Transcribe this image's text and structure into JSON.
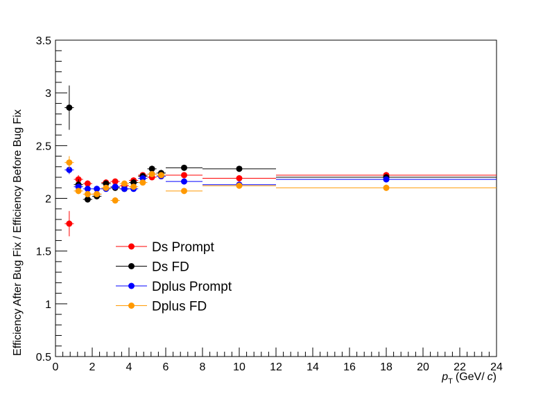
{
  "chart_data": {
    "type": "scatter",
    "title": "",
    "xlabel": "p_T (GeV/ c)",
    "xlabel_parts": {
      "p": "p",
      "T": "T",
      "unit": "(GeV/",
      "c": "c",
      "close": ")"
    },
    "ylabel": "Efficiency After Bug Fix / Efficiency Before Bug Fix",
    "xlim": [
      0,
      24
    ],
    "ylim": [
      0.5,
      3.5
    ],
    "x_major_ticks": [
      0,
      2,
      4,
      6,
      8,
      10,
      12,
      14,
      16,
      18,
      20,
      22,
      24
    ],
    "y_major_ticks": [
      0.5,
      1,
      1.5,
      2,
      2.5,
      3,
      3.5
    ],
    "x_tick_labels": [
      "0",
      "2",
      "4",
      "6",
      "8",
      "10",
      "12",
      "14",
      "16",
      "18",
      "20",
      "22",
      "24"
    ],
    "y_tick_labels": [
      "0.5",
      "1",
      "1.5",
      "2",
      "2.5",
      "3",
      "3.5"
    ],
    "grid": false,
    "legend_position": "lower-left",
    "x_bins": [
      [
        0.5,
        1.0
      ],
      [
        1.0,
        1.5
      ],
      [
        1.5,
        2.0
      ],
      [
        2.0,
        2.5
      ],
      [
        2.5,
        3.0
      ],
      [
        3.0,
        3.5
      ],
      [
        3.5,
        4.0
      ],
      [
        4.0,
        4.5
      ],
      [
        4.5,
        5.0
      ],
      [
        5.0,
        5.5
      ],
      [
        5.5,
        6.0
      ],
      [
        6.0,
        8.0
      ],
      [
        8.0,
        12.0
      ],
      [
        12.0,
        24.0
      ]
    ],
    "x": [
      0.75,
      1.25,
      1.75,
      2.25,
      2.75,
      3.25,
      3.75,
      4.25,
      4.75,
      5.25,
      5.75,
      7.0,
      10.0,
      18.0
    ],
    "series": [
      {
        "name": "Ds Prompt",
        "color": "#ff0000",
        "y": [
          1.76,
          2.18,
          2.14,
          2.04,
          2.15,
          2.16,
          2.12,
          2.17,
          2.22,
          2.2,
          2.21,
          2.22,
          2.19,
          2.22
        ],
        "yerr": [
          0.12,
          0.04,
          0.03,
          0.03,
          0.03,
          0.02,
          0.02,
          0.02,
          0.02,
          0.02,
          0.02,
          0.02,
          0.02,
          0.03
        ]
      },
      {
        "name": "Ds FD",
        "color": "#000000",
        "y": [
          2.86,
          2.13,
          1.99,
          2.02,
          2.14,
          2.1,
          2.09,
          2.15,
          2.21,
          2.28,
          2.24,
          2.29,
          2.28,
          2.2
        ],
        "yerr": [
          0.21,
          0.05,
          0.03,
          0.03,
          0.03,
          0.03,
          0.02,
          0.03,
          0.03,
          0.03,
          0.03,
          0.02,
          0.02,
          0.03
        ]
      },
      {
        "name": "Dplus Prompt",
        "color": "#0000ff",
        "y": [
          2.27,
          2.11,
          2.09,
          2.09,
          2.09,
          2.11,
          2.09,
          2.09,
          2.19,
          2.23,
          2.21,
          2.16,
          2.13,
          2.18
        ],
        "yerr": [
          0.04,
          0.02,
          0.02,
          0.02,
          0.02,
          0.02,
          0.02,
          0.02,
          0.02,
          0.02,
          0.02,
          0.01,
          0.01,
          0.02
        ]
      },
      {
        "name": "Dplus FD",
        "color": "#ff9900",
        "y": [
          2.34,
          2.07,
          2.04,
          2.04,
          2.1,
          1.98,
          2.14,
          2.11,
          2.15,
          2.23,
          2.22,
          2.07,
          2.12,
          2.1
        ],
        "yerr": [
          0.06,
          0.03,
          0.03,
          0.02,
          0.02,
          0.02,
          0.02,
          0.02,
          0.02,
          0.02,
          0.02,
          0.02,
          0.02,
          0.03
        ]
      }
    ]
  }
}
